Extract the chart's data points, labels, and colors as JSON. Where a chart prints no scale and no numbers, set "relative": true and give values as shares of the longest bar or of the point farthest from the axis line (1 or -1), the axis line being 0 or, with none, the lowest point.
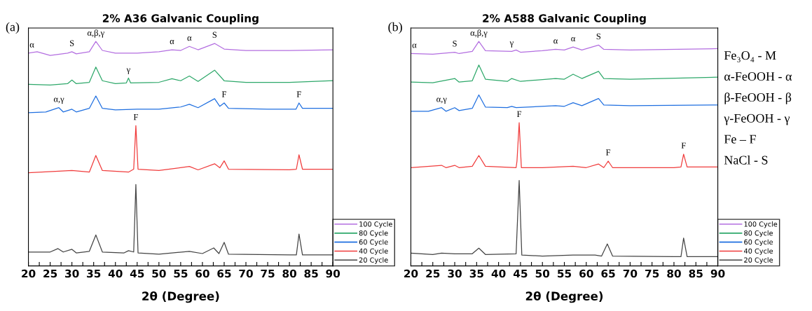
{
  "chart_data": [
    {
      "type": "line",
      "title": "2% A36 Galvanic Coupling",
      "xlabel": "2θ (Degree)",
      "relative": true,
      "legend": "bottom right",
      "xlim": [
        20,
        90
      ],
      "xticks": [
        20,
        {
          "value": 22.5,
          "label": null
        },
        25,
        {
          "value": 27.5,
          "label": null
        },
        30,
        {
          "value": 32.5,
          "label": null
        },
        35,
        {
          "value": 37.5,
          "label": null
        },
        40,
        {
          "value": 42.5,
          "label": null
        },
        45,
        {
          "value": 47.5,
          "label": null
        },
        50,
        {
          "value": 52.5,
          "label": null
        },
        55,
        {
          "value": 57.5,
          "label": null
        },
        60,
        {
          "value": 62.5,
          "label": null
        },
        65,
        {
          "value": 67.5,
          "label": null
        },
        70,
        {
          "value": 72.5,
          "label": null
        },
        75,
        {
          "value": 77.5,
          "label": null
        },
        80,
        {
          "value": 82.5,
          "label": null
        },
        85,
        {
          "value": 87.5,
          "label": null
        },
        90
      ],
      "series": [
        {
          "name": "100 Cycle",
          "color": "#b36ee0",
          "x": [
            20,
            22,
            25,
            29,
            30,
            31,
            34,
            35.5,
            37,
            40,
            45,
            50,
            53,
            55,
            57,
            59,
            62.8,
            65,
            70,
            80,
            90
          ],
          "values": [
            0.948,
            0.954,
            0.938,
            0.948,
            0.954,
            0.945,
            0.954,
            1.0,
            0.96,
            0.948,
            0.948,
            0.954,
            0.963,
            0.96,
            0.978,
            0.963,
            0.991,
            0.966,
            0.96,
            0.96,
            0.963
          ]
        },
        {
          "name": "80 Cycle",
          "color": "#2ea86a",
          "x": [
            20,
            25,
            29,
            30,
            31,
            34,
            35.5,
            37,
            40,
            42.5,
            43,
            43.5,
            50,
            53,
            55,
            57,
            59,
            62.8,
            65,
            70,
            80,
            90
          ],
          "values": [
            0.809,
            0.806,
            0.812,
            0.828,
            0.812,
            0.818,
            0.886,
            0.825,
            0.812,
            0.815,
            0.837,
            0.815,
            0.818,
            0.834,
            0.825,
            0.846,
            0.822,
            0.872,
            0.825,
            0.818,
            0.818,
            0.825
          ]
        },
        {
          "name": "60 Cycle",
          "color": "#1f6fe0",
          "x": [
            20,
            24,
            27,
            28,
            30,
            31,
            34,
            35.5,
            37,
            40,
            45,
            50,
            55,
            57,
            59,
            62.8,
            64,
            65,
            66,
            75,
            81.5,
            82.2,
            83,
            90
          ],
          "values": [
            0.683,
            0.686,
            0.705,
            0.686,
            0.698,
            0.686,
            0.702,
            0.757,
            0.702,
            0.695,
            0.698,
            0.698,
            0.708,
            0.72,
            0.705,
            0.745,
            0.711,
            0.726,
            0.702,
            0.698,
            0.698,
            0.726,
            0.702,
            0.702
          ]
        },
        {
          "name": "40 Cycle",
          "color": "#f03c3c",
          "x": [
            20,
            27,
            30,
            34,
            35.5,
            37,
            43,
            44.2,
            44.7,
            45.2,
            50,
            57,
            59,
            62.8,
            64,
            65,
            66,
            80,
            81.6,
            82.2,
            83,
            90
          ],
          "values": [
            0.415,
            0.422,
            0.425,
            0.418,
            0.492,
            0.425,
            0.418,
            0.431,
            0.625,
            0.431,
            0.425,
            0.443,
            0.428,
            0.455,
            0.437,
            0.468,
            0.431,
            0.428,
            0.431,
            0.495,
            0.431,
            0.431
          ]
        },
        {
          "name": "20 Cycle",
          "color": "#444444",
          "x": [
            20,
            25,
            26.8,
            28,
            30,
            31,
            34,
            35.5,
            37,
            42,
            43,
            44.2,
            44.7,
            45.2,
            50,
            57,
            60,
            62.6,
            63.8,
            65,
            66,
            80,
            81.6,
            82.2,
            83,
            90
          ],
          "values": [
            0.062,
            0.062,
            0.077,
            0.062,
            0.074,
            0.058,
            0.065,
            0.138,
            0.062,
            0.058,
            0.068,
            0.062,
            0.363,
            0.058,
            0.052,
            0.065,
            0.055,
            0.08,
            0.055,
            0.105,
            0.052,
            0.049,
            0.049,
            0.142,
            0.049,
            0.049
          ]
        }
      ],
      "annotations": [
        "(a)",
        {
          "text": "α",
          "x": 20.8,
          "y": 0.948
        },
        {
          "text": "S",
          "x": 30,
          "y": 0.954
        },
        {
          "text": "α,β,γ",
          "x": 35.5,
          "y": 1.0
        },
        {
          "text": "α",
          "x": 53,
          "y": 0.963
        },
        {
          "text": "α",
          "x": 57,
          "y": 0.978
        },
        {
          "text": "S",
          "x": 62.8,
          "y": 0.991
        },
        {
          "text": "γ",
          "x": 43,
          "y": 0.837
        },
        {
          "text": "α,γ",
          "x": 27,
          "y": 0.705
        },
        {
          "text": "F",
          "x": 65,
          "y": 0.726
        },
        {
          "text": "F",
          "x": 82.2,
          "y": 0.726
        },
        {
          "text": "F",
          "x": 44.7,
          "y": 0.625
        }
      ]
    },
    {
      "type": "line",
      "title": "2% A588 Galvanic Coupling",
      "xlabel": "2θ (Degree)",
      "relative": true,
      "legend": "bottom right",
      "xlim": [
        20,
        90
      ],
      "xticks": [
        20,
        {
          "value": 22.5,
          "label": null
        },
        25,
        {
          "value": 27.5,
          "label": null
        },
        30,
        {
          "value": 32.5,
          "label": null
        },
        35,
        {
          "value": 37.5,
          "label": null
        },
        40,
        {
          "value": 42.5,
          "label": null
        },
        45,
        {
          "value": 47.5,
          "label": null
        },
        50,
        {
          "value": 52.5,
          "label": null
        },
        55,
        {
          "value": 57.5,
          "label": null
        },
        60,
        {
          "value": 62.5,
          "label": null
        },
        65,
        {
          "value": 67.5,
          "label": null
        },
        70,
        {
          "value": 72.5,
          "label": null
        },
        75,
        {
          "value": 77.5,
          "label": null
        },
        80,
        {
          "value": 82.5,
          "label": null
        },
        85,
        {
          "value": 87.5,
          "label": null
        },
        90
      ],
      "series": [
        {
          "name": "100 Cycle",
          "color": "#b36ee0",
          "x": [
            20,
            25,
            30,
            31,
            34,
            35.5,
            37,
            43,
            44,
            45,
            50,
            53,
            55,
            57,
            59,
            62.8,
            64,
            70,
            90
          ],
          "values": [
            0.946,
            0.943,
            0.952,
            0.946,
            0.956,
            1.0,
            0.959,
            0.956,
            0.962,
            0.952,
            0.959,
            0.965,
            0.962,
            0.975,
            0.962,
            0.984,
            0.965,
            0.962,
            0.968
          ]
        },
        {
          "name": "80 Cycle",
          "color": "#2ea86a",
          "x": [
            20,
            25,
            30,
            31,
            34,
            35.5,
            37,
            42,
            43,
            45,
            53,
            55,
            57,
            59,
            62.8,
            64,
            70,
            90
          ],
          "values": [
            0.819,
            0.816,
            0.835,
            0.819,
            0.825,
            0.895,
            0.832,
            0.822,
            0.835,
            0.822,
            0.835,
            0.832,
            0.854,
            0.835,
            0.867,
            0.835,
            0.832,
            0.841
          ]
        },
        {
          "name": "60 Cycle",
          "color": "#1f6fe0",
          "x": [
            20,
            24,
            27,
            28,
            30,
            31,
            34,
            35.5,
            37,
            42,
            43,
            44,
            53,
            55,
            57,
            59,
            62.8,
            64,
            70,
            90
          ],
          "values": [
            0.689,
            0.689,
            0.705,
            0.689,
            0.705,
            0.692,
            0.702,
            0.762,
            0.708,
            0.705,
            0.711,
            0.705,
            0.714,
            0.711,
            0.727,
            0.714,
            0.746,
            0.717,
            0.714,
            0.717
          ]
        },
        {
          "name": "40 Cycle",
          "color": "#f03c3c",
          "x": [
            20,
            27,
            28,
            30,
            31,
            34,
            35.5,
            37,
            44,
            44.2,
            44.7,
            45.2,
            50,
            57,
            60,
            62.8,
            64,
            65,
            66,
            80,
            81.6,
            82.2,
            83,
            90
          ],
          "values": [
            0.438,
            0.448,
            0.438,
            0.448,
            0.438,
            0.444,
            0.492,
            0.444,
            0.438,
            0.467,
            0.638,
            0.438,
            0.438,
            0.444,
            0.438,
            0.454,
            0.438,
            0.467,
            0.438,
            0.438,
            0.441,
            0.498,
            0.441,
            0.441
          ]
        },
        {
          "name": "20 Cycle",
          "color": "#444444",
          "x": [
            20,
            25,
            27,
            30,
            34,
            35.5,
            37,
            44,
            44.7,
            45.3,
            50,
            57,
            62,
            63.5,
            64.8,
            66,
            80,
            81.6,
            82.2,
            83,
            90
          ],
          "values": [
            0.057,
            0.051,
            0.057,
            0.054,
            0.054,
            0.079,
            0.051,
            0.054,
            0.381,
            0.048,
            0.044,
            0.048,
            0.048,
            0.044,
            0.098,
            0.044,
            0.041,
            0.041,
            0.124,
            0.041,
            0.041
          ]
        }
      ],
      "annotations": [
        "(b)",
        "Fe₃O₄ - M",
        "α-FeOOH - α",
        "β-FeOOH - β",
        "γ-FeOOH - γ",
        "Fe – F",
        "NaCl - S",
        {
          "text": "α",
          "x": 20.8,
          "y": 0.946
        },
        {
          "text": "S",
          "x": 30,
          "y": 0.952
        },
        {
          "text": "α,β,γ",
          "x": 35.5,
          "y": 1.0
        },
        {
          "text": "γ",
          "x": 43,
          "y": 0.956
        },
        {
          "text": "α",
          "x": 53,
          "y": 0.965
        },
        {
          "text": "α",
          "x": 57,
          "y": 0.975
        },
        {
          "text": "S",
          "x": 62.8,
          "y": 0.984
        },
        {
          "text": "α,γ",
          "x": 27,
          "y": 0.705
        },
        {
          "text": "F",
          "x": 44.7,
          "y": 0.638
        },
        {
          "text": "F",
          "x": 65,
          "y": 0.467
        },
        {
          "text": "F",
          "x": 82.2,
          "y": 0.498
        }
      ]
    }
  ]
}
